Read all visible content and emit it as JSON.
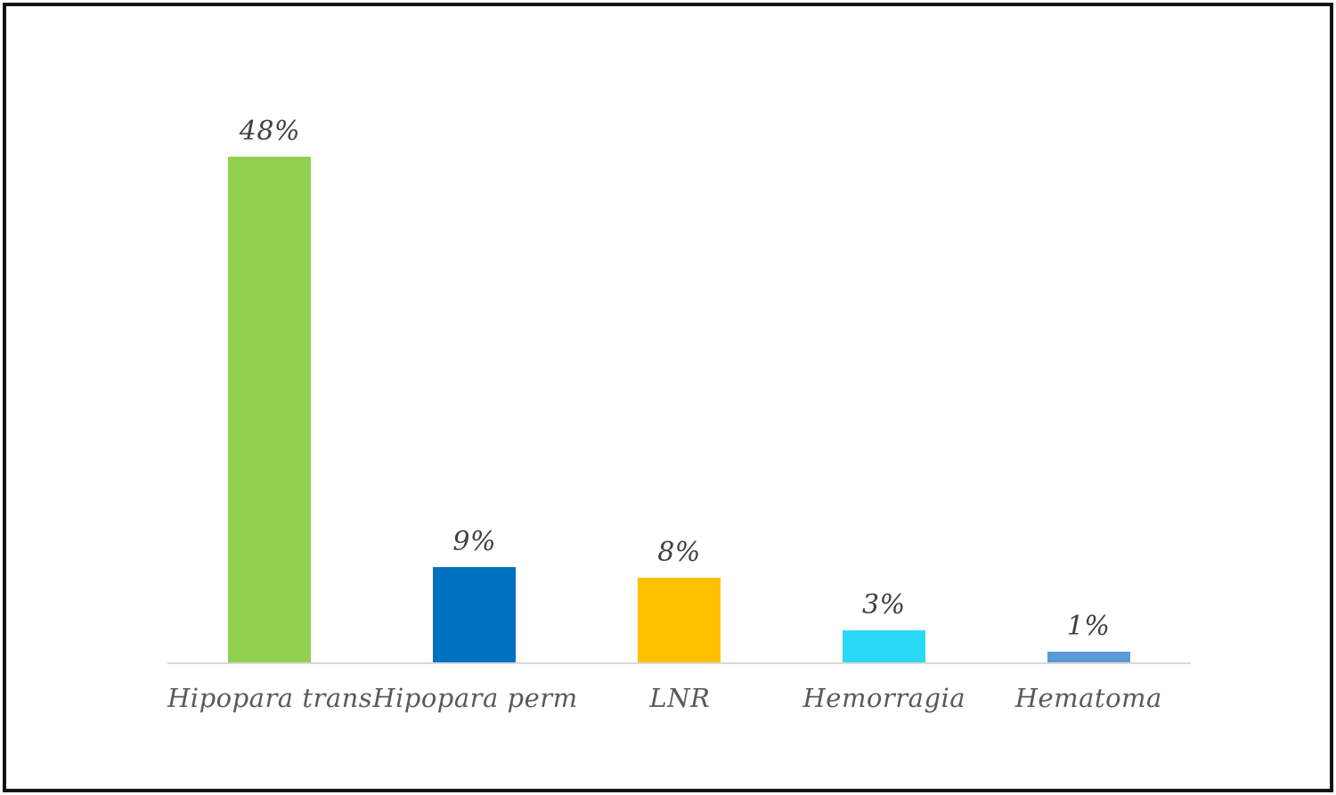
{
  "frame": {
    "border_color": "#141414",
    "background_color": "#ffffff"
  },
  "chart_data": {
    "type": "bar",
    "title": "",
    "xlabel": "",
    "ylabel": "",
    "categories": [
      "Hipopara trans",
      "Hipopara perm",
      "LNR",
      "Hemorragia",
      "Hematoma"
    ],
    "values": [
      48,
      9,
      8,
      3,
      1
    ],
    "value_labels": [
      "48%",
      "9%",
      "8%",
      "3%",
      "1%"
    ],
    "bar_colors": [
      "#92D050",
      "#0070C0",
      "#FFC000",
      "#29D9F5",
      "#5B9BD5"
    ],
    "ylim": [
      0,
      48
    ],
    "grid": false,
    "legend": false,
    "axis_line_color": "#D9D9D9",
    "value_label_color": "#404040",
    "category_label_color": "#595959"
  }
}
